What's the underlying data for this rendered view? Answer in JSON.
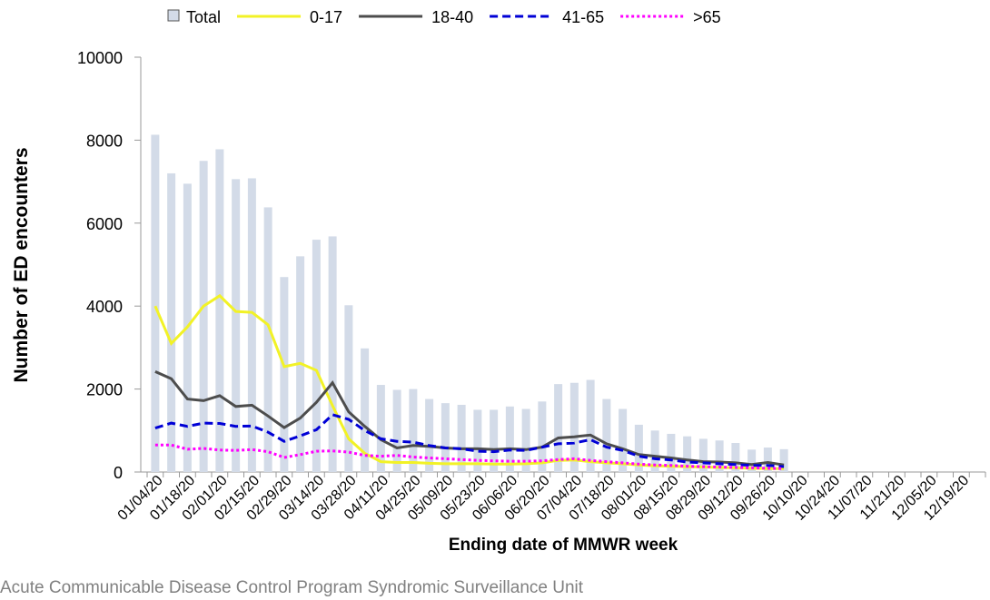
{
  "chart_data": {
    "type": "bar",
    "y_label": "Number of ED encounters",
    "x_label": "Ending date of MMWR week",
    "source": "Acute Communicable Disease Control Program Syndromic Surveillance Unit",
    "categories": [
      "01/04/20",
      null,
      "01/18/20",
      null,
      "02/01/20",
      null,
      "02/15/20",
      null,
      "02/29/20",
      null,
      "03/14/20",
      null,
      "03/28/20",
      null,
      "04/11/20",
      null,
      "04/25/20",
      null,
      "05/09/20",
      null,
      "05/23/20",
      null,
      "06/06/20",
      null,
      "06/20/20",
      null,
      "07/04/20",
      null,
      "07/18/20",
      null,
      "08/01/20",
      null,
      "08/15/20",
      null,
      "08/29/20",
      null,
      "09/12/20",
      null,
      "09/26/20",
      null,
      "10/10/20",
      null,
      "10/24/20",
      null,
      "11/07/20",
      null,
      "11/21/20",
      null,
      "12/05/20",
      null,
      "12/19/20",
      null
    ],
    "ylim": [
      0,
      10000
    ],
    "yticks": [
      0,
      2000,
      4000,
      6000,
      8000,
      10000
    ],
    "legend": "top",
    "series": [
      {
        "name": "Total",
        "type": "bar",
        "color": "#d3dbe8",
        "values": [
          8130,
          7200,
          6950,
          7500,
          7780,
          7060,
          7080,
          6380,
          4700,
          5200,
          5600,
          5680,
          4020,
          2980,
          2100,
          1980,
          2000,
          1760,
          1660,
          1620,
          1500,
          1500,
          1580,
          1520,
          1700,
          2120,
          2150,
          2220,
          1760,
          1520,
          1140,
          1000,
          920,
          860,
          800,
          760,
          700,
          540,
          590,
          550,
          null,
          null,
          null,
          null,
          null,
          null,
          null,
          null,
          null,
          null,
          null,
          null
        ]
      },
      {
        "name": "0-17",
        "type": "line",
        "dash": "solid",
        "color": "#f2f226",
        "values": [
          4000,
          3100,
          3500,
          4000,
          4250,
          3870,
          3850,
          3550,
          2540,
          2620,
          2450,
          1600,
          800,
          450,
          250,
          230,
          230,
          210,
          200,
          200,
          200,
          190,
          190,
          200,
          220,
          280,
          290,
          250,
          220,
          200,
          170,
          150,
          140,
          130,
          120,
          110,
          100,
          90,
          80,
          80,
          null,
          null,
          null,
          null,
          null,
          null,
          null,
          null,
          null,
          null,
          null,
          null
        ]
      },
      {
        "name": "18-40",
        "type": "line",
        "dash": "solid",
        "color": "#4d4d4d",
        "values": [
          2420,
          2250,
          1760,
          1720,
          1840,
          1580,
          1610,
          1350,
          1070,
          1300,
          1680,
          2150,
          1450,
          1100,
          780,
          580,
          640,
          620,
          580,
          560,
          560,
          540,
          560,
          540,
          600,
          820,
          850,
          890,
          680,
          560,
          420,
          380,
          340,
          290,
          250,
          240,
          220,
          180,
          230,
          170,
          null,
          null,
          null,
          null,
          null,
          null,
          null,
          null,
          null,
          null,
          null,
          null
        ]
      },
      {
        "name": "41-65",
        "type": "line",
        "dash": "dashed",
        "color": "#0000d6",
        "values": [
          1060,
          1180,
          1100,
          1180,
          1170,
          1100,
          1110,
          960,
          740,
          870,
          1020,
          1380,
          1270,
          1000,
          800,
          740,
          720,
          640,
          580,
          560,
          500,
          490,
          530,
          520,
          600,
          680,
          700,
          780,
          600,
          520,
          380,
          320,
          290,
          240,
          220,
          200,
          180,
          160,
          160,
          130,
          null,
          null,
          null,
          null,
          null,
          null,
          null,
          null,
          null,
          null,
          null,
          null
        ]
      },
      {
        "name": ">65",
        "type": "line",
        "dash": "dotted",
        "color": "#ff00ff",
        "values": [
          650,
          650,
          550,
          570,
          530,
          520,
          540,
          490,
          350,
          420,
          500,
          510,
          480,
          400,
          380,
          400,
          360,
          340,
          320,
          300,
          280,
          270,
          260,
          260,
          270,
          300,
          320,
          280,
          250,
          220,
          190,
          170,
          160,
          140,
          130,
          120,
          110,
          100,
          90,
          80,
          null,
          null,
          null,
          null,
          null,
          null,
          null,
          null,
          null,
          null,
          null,
          null
        ]
      }
    ]
  }
}
